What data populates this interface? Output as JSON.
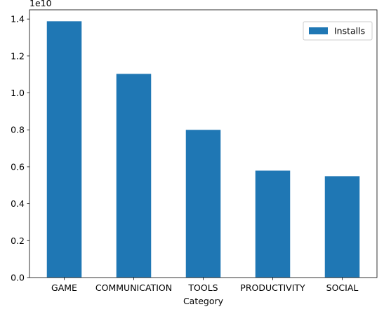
{
  "chart_data": {
    "type": "bar",
    "categories": [
      "GAME",
      "COMMUNICATION",
      "TOOLS",
      "PRODUCTIVITY",
      "SOCIAL"
    ],
    "series": [
      {
        "name": "Installs",
        "color": "#1f77b4",
        "values": [
          13880000000,
          11030000000,
          8000000000,
          5790000000,
          5490000000
        ]
      }
    ],
    "xlabel": "Category",
    "ylabel": "",
    "ylim": [
      0,
      14500000000
    ],
    "y_ticks": [
      "0.0",
      "0.2",
      "0.4",
      "0.6",
      "0.8",
      "1.0",
      "1.2",
      "1.4"
    ],
    "y_tick_values": [
      0,
      2000000000,
      4000000000,
      6000000000,
      8000000000,
      10000000000,
      12000000000,
      14000000000
    ],
    "y_offset_label": "1e10",
    "legend_position": "top-right",
    "grid": false
  }
}
